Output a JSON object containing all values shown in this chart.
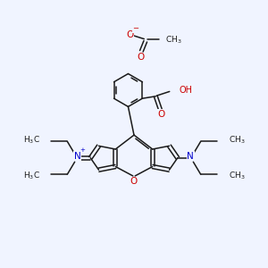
{
  "bg_color": "#f0f4ff",
  "bond_color": "#1a1a1a",
  "red_color": "#cc0000",
  "blue_color": "#0000cc",
  "lw": 1.1,
  "fs": 6.5,
  "xlim": [
    0,
    10
  ],
  "ylim": [
    0,
    10
  ]
}
